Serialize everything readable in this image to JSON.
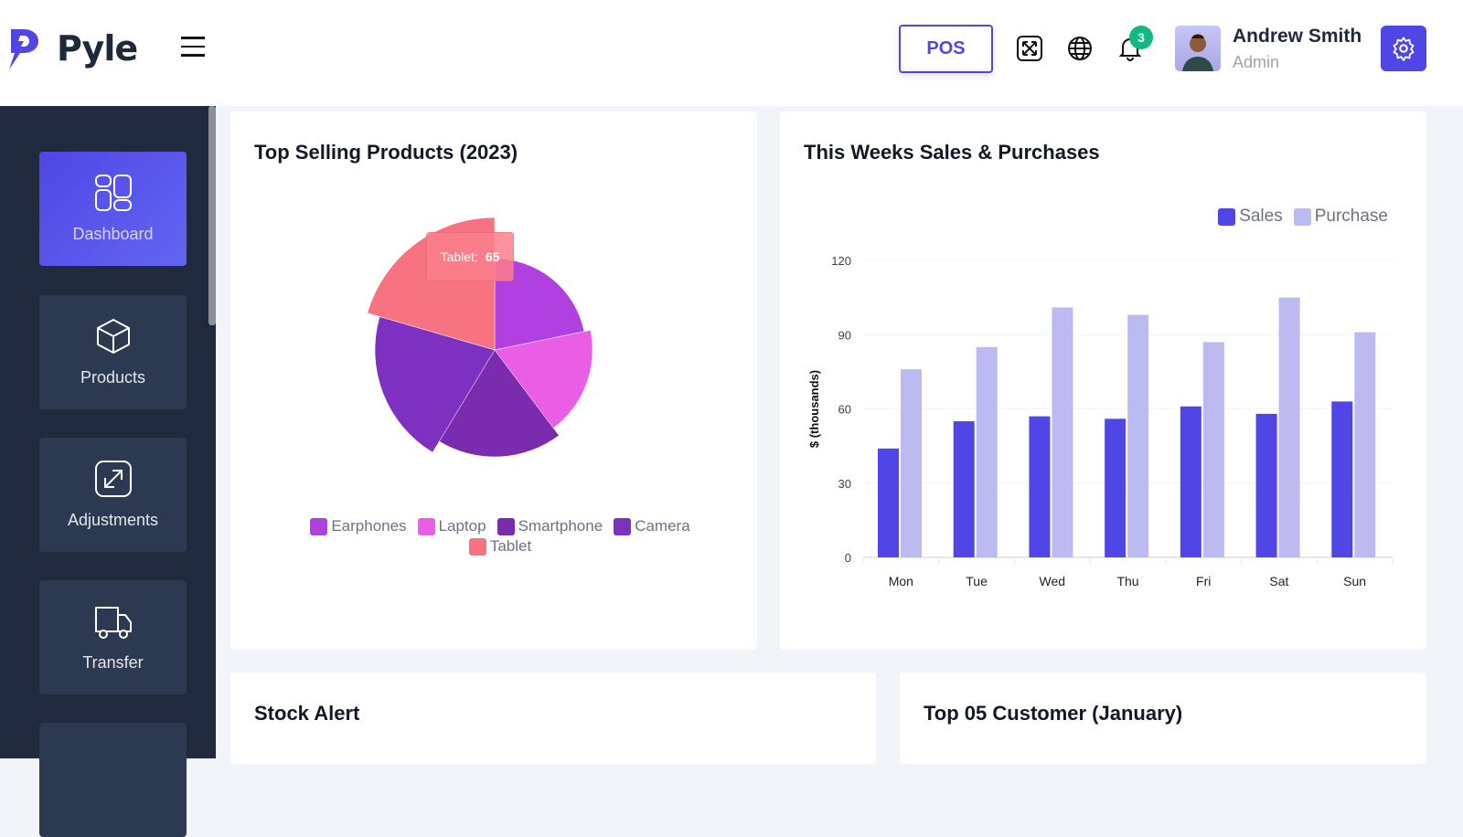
{
  "app": {
    "name": "Pyle"
  },
  "header": {
    "pos_label": "POS",
    "notification_count": "3",
    "user": {
      "name": "Andrew Smith",
      "role": "Admin"
    }
  },
  "sidebar": {
    "items": [
      {
        "label": "Dashboard",
        "icon": "grid-icon",
        "active": true
      },
      {
        "label": "Products",
        "icon": "cube-icon"
      },
      {
        "label": "Adjustments",
        "icon": "resize-icon"
      },
      {
        "label": "Transfer",
        "icon": "truck-icon"
      }
    ]
  },
  "cards": {
    "top_products": "Top Selling Products (2023)",
    "weekly": "This Weeks Sales & Purchases",
    "stock": "Stock Alert",
    "customers": "Top 05 Customer (January)"
  },
  "tooltip": {
    "label": "Tablet:",
    "value": "65"
  },
  "chart_data": [
    {
      "type": "pie",
      "title": "Top Selling Products (2023)",
      "labels": [
        "Earphones",
        "Laptop",
        "Smartphone",
        "Camera",
        "Tablet"
      ],
      "values": [
        69,
        57,
        60,
        66,
        65
      ],
      "colors": [
        "#b040e0",
        "#ea5ee6",
        "#7b2cae",
        "#7e30c0",
        "#f87382"
      ],
      "hovered": "Tablet",
      "legend": "bottom"
    },
    {
      "type": "bar",
      "title": "This Weeks Sales & Purchases",
      "categories": [
        "Mon",
        "Tue",
        "Wed",
        "Thu",
        "Fri",
        "Sat",
        "Sun"
      ],
      "series": [
        {
          "name": "Sales",
          "values": [
            44,
            55,
            57,
            56,
            61,
            58,
            63
          ],
          "color": "#4f46e5"
        },
        {
          "name": "Purchase",
          "values": [
            76,
            85,
            101,
            98,
            87,
            105,
            91
          ],
          "color": "#bbbaf1"
        }
      ],
      "ylabel": "$ (thousands)",
      "ylim": [
        0,
        120
      ],
      "yticks": [
        "0",
        "30",
        "60",
        "90",
        "120"
      ],
      "legend": "top-right",
      "grid": true
    }
  ]
}
